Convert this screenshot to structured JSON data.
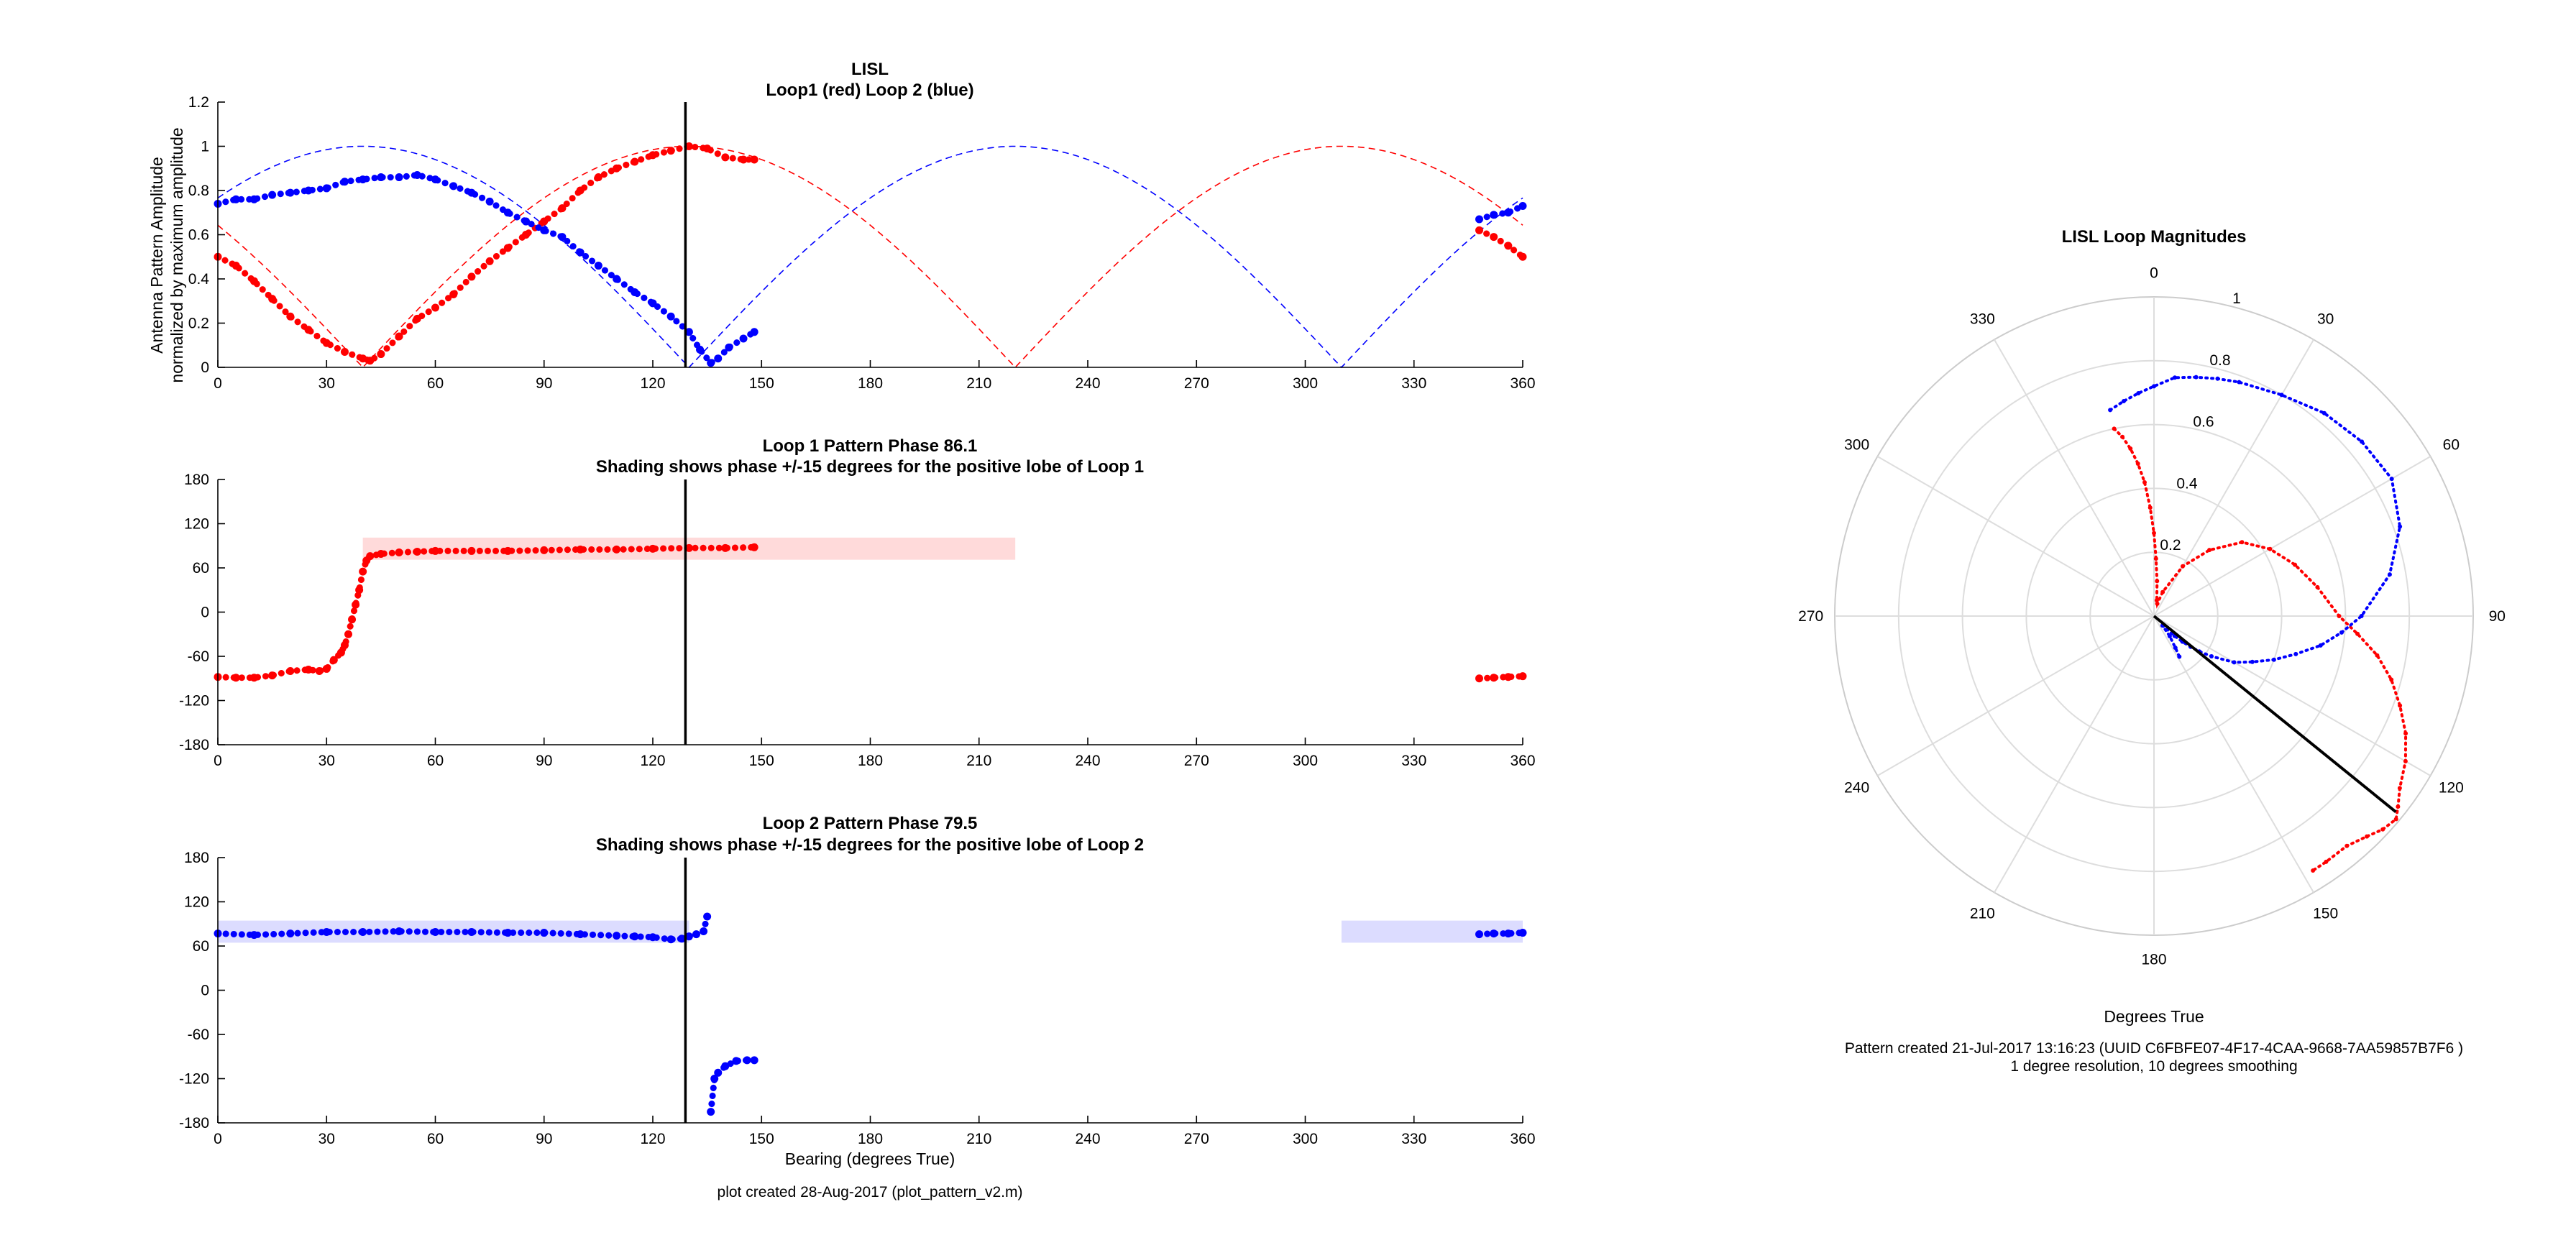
{
  "colors": {
    "loop1": "#ff0000",
    "loop2": "#0000ff",
    "shade1": "#ffdada",
    "shade2": "#dcdcff",
    "marker": "#000000",
    "grid": "#dddddd"
  },
  "footer_left": "plot created 28-Aug-2017 (plot_pattern_v2.m)",
  "polar_notes": {
    "line1": "Pattern created 21-Jul-2017 13:16:23 (UUID C6FBFE07-4F17-4CAA-9668-7AA59857B7F6 )",
    "line2": "1 degree resolution, 10 degrees smoothing"
  },
  "chart_data": [
    {
      "type": "scatter",
      "title": "LISL",
      "subtitle": "Loop1 (red) Loop 2 (blue)",
      "ylabel": "Antenna Pattern Amplitude",
      "ylabel2": "normalized by maximum amplitude",
      "xlim": [
        0,
        360
      ],
      "ylim": [
        0,
        1.2
      ],
      "xticks": [
        "0",
        "30",
        "60",
        "90",
        "120",
        "150",
        "180",
        "210",
        "240",
        "270",
        "300",
        "330",
        "360"
      ],
      "yticks": [
        "0",
        "0.2",
        "0.4",
        "0.6",
        "0.8",
        "1",
        "1.2"
      ],
      "bearing_marker": 129,
      "ideal_curves": [
        {
          "color": "#ff0000",
          "model": "abs-cos",
          "null_bearings": [
            40,
            220
          ]
        },
        {
          "color": "#0000ff",
          "model": "abs-cos",
          "null_bearings": [
            130,
            310
          ]
        }
      ],
      "series": [
        {
          "color": "#ff0000",
          "x": [
            0,
            5,
            10,
            15,
            20,
            25,
            30,
            35,
            40,
            42,
            45,
            50,
            55,
            60,
            65,
            70,
            75,
            80,
            85,
            90,
            95,
            100,
            105,
            110,
            115,
            120,
            125,
            130,
            135,
            140,
            145,
            148,
            348,
            352,
            356,
            360
          ],
          "y": [
            0.5,
            0.46,
            0.39,
            0.31,
            0.23,
            0.17,
            0.11,
            0.07,
            0.04,
            0.03,
            0.06,
            0.14,
            0.22,
            0.27,
            0.33,
            0.41,
            0.48,
            0.54,
            0.6,
            0.66,
            0.72,
            0.8,
            0.86,
            0.9,
            0.93,
            0.96,
            0.98,
            1.0,
            0.99,
            0.95,
            0.94,
            0.94,
            0.62,
            0.59,
            0.55,
            0.5
          ]
        },
        {
          "color": "#0000ff",
          "x": [
            0,
            5,
            10,
            15,
            20,
            25,
            30,
            35,
            40,
            45,
            50,
            55,
            60,
            65,
            70,
            75,
            80,
            85,
            90,
            95,
            100,
            105,
            110,
            115,
            120,
            125,
            130,
            133,
            136,
            138,
            141,
            145,
            148,
            348,
            352,
            356,
            360
          ],
          "y": [
            0.74,
            0.76,
            0.76,
            0.78,
            0.79,
            0.8,
            0.81,
            0.84,
            0.85,
            0.86,
            0.86,
            0.87,
            0.85,
            0.82,
            0.79,
            0.75,
            0.7,
            0.66,
            0.62,
            0.59,
            0.52,
            0.46,
            0.4,
            0.34,
            0.29,
            0.23,
            0.16,
            0.08,
            0.02,
            0.04,
            0.09,
            0.13,
            0.16,
            0.67,
            0.69,
            0.7,
            0.73
          ]
        }
      ]
    },
    {
      "type": "scatter",
      "title": "Loop 1 Pattern Phase 86.1",
      "subtitle": "Shading shows phase +/-15 degrees for the positive lobe of Loop 1",
      "xlim": [
        0,
        360
      ],
      "ylim": [
        -180,
        180
      ],
      "xticks": [
        "0",
        "30",
        "60",
        "90",
        "120",
        "150",
        "180",
        "210",
        "240",
        "270",
        "300",
        "330",
        "360"
      ],
      "yticks": [
        "-180",
        "-120",
        "-60",
        "0",
        "60",
        "120",
        "180"
      ],
      "bearing_marker": 129,
      "shading": [
        {
          "x0": 40,
          "x1": 220,
          "y0": 71.1,
          "y1": 101.1,
          "color": "#ffdada"
        }
      ],
      "series": [
        {
          "color": "#ff0000",
          "x": [
            0,
            5,
            10,
            15,
            20,
            25,
            28,
            30,
            32,
            34,
            35,
            36,
            37,
            38,
            39,
            40,
            41,
            42,
            45,
            50,
            55,
            60,
            70,
            80,
            90,
            100,
            110,
            120,
            130,
            140,
            148,
            348,
            352,
            356,
            360
          ],
          "y": [
            -88,
            -89,
            -89,
            -86,
            -80,
            -78,
            -80,
            -77,
            -65,
            -55,
            -45,
            -30,
            -10,
            10,
            30,
            55,
            70,
            76,
            79,
            81,
            82,
            83,
            83,
            83,
            84,
            85,
            85,
            86,
            87,
            87,
            88,
            -90,
            -89,
            -88,
            -87
          ]
        }
      ]
    },
    {
      "type": "scatter",
      "title": "Loop 2 Pattern Phase 79.5",
      "subtitle": "Shading shows phase +/-15 degrees for the positive lobe of Loop 2",
      "xlabel": "Bearing (degrees True)",
      "xlim": [
        0,
        360
      ],
      "ylim": [
        -180,
        180
      ],
      "xticks": [
        "0",
        "30",
        "60",
        "90",
        "120",
        "150",
        "180",
        "210",
        "240",
        "270",
        "300",
        "330",
        "360"
      ],
      "yticks": [
        "-180",
        "-120",
        "-60",
        "0",
        "60",
        "120",
        "180"
      ],
      "bearing_marker": 129,
      "shading": [
        {
          "x0": 0,
          "x1": 130,
          "y0": 64.5,
          "y1": 94.5,
          "color": "#dcdcff"
        },
        {
          "x0": 310,
          "x1": 360,
          "y0": 64.5,
          "y1": 94.5,
          "color": "#dcdcff"
        }
      ],
      "series": [
        {
          "color": "#0000ff",
          "x": [
            0,
            10,
            20,
            30,
            40,
            50,
            60,
            70,
            80,
            90,
            100,
            110,
            115,
            120,
            125,
            128,
            130,
            132,
            134,
            135,
            136,
            137,
            138,
            140,
            143,
            146,
            148,
            348,
            352,
            356,
            360
          ],
          "y": [
            77,
            75,
            77,
            79,
            79,
            80,
            79,
            79,
            78,
            78,
            76,
            74,
            73,
            72,
            69,
            70,
            73,
            76,
            80,
            100,
            -165,
            -120,
            -112,
            -103,
            -96,
            -95,
            -95,
            76,
            77,
            77,
            78
          ]
        }
      ]
    },
    {
      "type": "scatter",
      "title": "LISL Loop Magnitudes",
      "subtitle": "",
      "xlabel": "Degrees True",
      "coordinate": "polar",
      "rlim": [
        0,
        1
      ],
      "rticks": [
        "0.2",
        "0.4",
        "0.6",
        "0.8",
        "1"
      ],
      "theta_ticks": [
        "0",
        "30",
        "60",
        "90",
        "120",
        "150",
        "180",
        "210",
        "240",
        "270",
        "300",
        "330"
      ],
      "bearing_marker": 129,
      "series": [
        {
          "color": "#ff0000",
          "theta": [
            348,
            350,
            352,
            354,
            356,
            358,
            0,
            2,
            5,
            10,
            15,
            20,
            30,
            40,
            50,
            60,
            70,
            80,
            90,
            95,
            100,
            105,
            110,
            115,
            120,
            125,
            128,
            130,
            133,
            136,
            140,
            145,
            148
          ],
          "r": [
            0.6,
            0.57,
            0.53,
            0.48,
            0.42,
            0.34,
            0.26,
            0.18,
            0.11,
            0.05,
            0.04,
            0.08,
            0.18,
            0.27,
            0.36,
            0.42,
            0.47,
            0.52,
            0.58,
            0.64,
            0.71,
            0.77,
            0.82,
            0.87,
            0.91,
            0.94,
            0.97,
            0.99,
            0.98,
            0.96,
            0.94,
            0.94,
            0.94
          ]
        },
        {
          "color": "#0000ff",
          "theta": [
            348,
            352,
            356,
            0,
            5,
            10,
            15,
            20,
            30,
            40,
            50,
            60,
            70,
            80,
            90,
            95,
            100,
            105,
            110,
            115,
            120,
            125,
            128,
            130,
            132,
            134,
            138,
            142,
            146,
            148
          ],
          "r": [
            0.66,
            0.68,
            0.7,
            0.72,
            0.75,
            0.76,
            0.77,
            0.78,
            0.8,
            0.83,
            0.85,
            0.86,
            0.82,
            0.75,
            0.65,
            0.59,
            0.53,
            0.46,
            0.4,
            0.34,
            0.29,
            0.22,
            0.18,
            0.15,
            0.12,
            0.09,
            0.04,
            0.08,
            0.12,
            0.15
          ]
        }
      ]
    }
  ]
}
